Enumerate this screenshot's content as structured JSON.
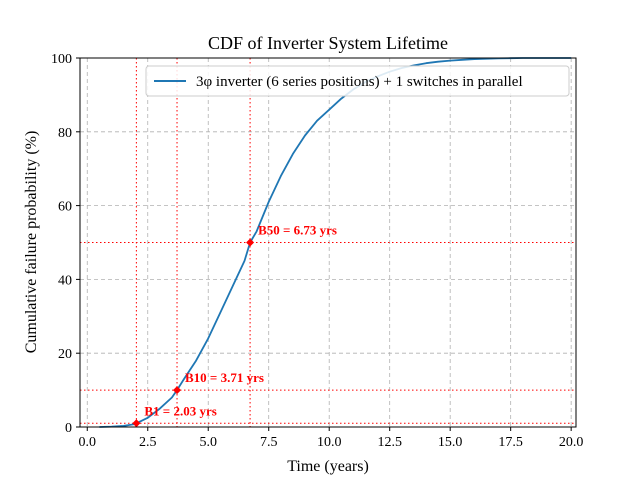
{
  "chart_data": {
    "type": "line",
    "title": "CDF of Inverter System Lifetime",
    "xlabel": "Time (years)",
    "ylabel": "Cumulative failure probability (%)",
    "xlim": [
      -0.3,
      20.2
    ],
    "ylim": [
      0,
      100
    ],
    "xticks": [
      0,
      2.5,
      5,
      7.5,
      10,
      12.5,
      15,
      17.5,
      20
    ],
    "xtick_labels": [
      "0.0",
      "2.5",
      "5.0",
      "7.5",
      "10.0",
      "12.5",
      "15.0",
      "17.5",
      "20.0"
    ],
    "yticks": [
      0,
      20,
      40,
      60,
      80,
      100
    ],
    "ytick_labels": [
      "0",
      "20",
      "40",
      "60",
      "80",
      "100"
    ],
    "grid": true,
    "legend_position": "top-right",
    "series": [
      {
        "name": "3φ inverter (6 series positions) + 1 switches in parallel",
        "color": "#1f77b4",
        "x": [
          0.5,
          1.0,
          1.5,
          2.0,
          2.03,
          2.5,
          3.0,
          3.5,
          3.71,
          4.0,
          4.5,
          5.0,
          5.5,
          6.0,
          6.5,
          6.73,
          7.0,
          7.5,
          8.0,
          8.5,
          9.0,
          9.5,
          10.0,
          10.5,
          11.0,
          11.5,
          12.0,
          12.5,
          13.0,
          13.5,
          14.0,
          14.5,
          15.0,
          15.5,
          16.0,
          16.5,
          17.0,
          17.5,
          18.0,
          18.5,
          19.0,
          19.5,
          20.0
        ],
        "y": [
          0,
          0.1,
          0.3,
          0.8,
          1,
          2.5,
          5,
          8,
          10,
          13,
          18,
          24,
          31,
          38,
          45,
          50,
          53,
          61,
          68,
          74,
          79,
          83,
          86,
          89,
          91.5,
          93.5,
          95,
          96.3,
          97.3,
          98,
          98.6,
          99,
          99.3,
          99.5,
          99.7,
          99.8,
          99.9,
          99.95,
          100,
          100,
          100,
          100,
          100
        ]
      }
    ],
    "reference_color": "#ff0000",
    "markers": [
      {
        "label": "B1 = 2.03 yrs",
        "x": 2.03,
        "y": 1
      },
      {
        "label": "B10 = 3.71 yrs",
        "x": 3.71,
        "y": 10
      },
      {
        "label": "B50 = 6.73 yrs",
        "x": 6.73,
        "y": 50
      }
    ]
  }
}
